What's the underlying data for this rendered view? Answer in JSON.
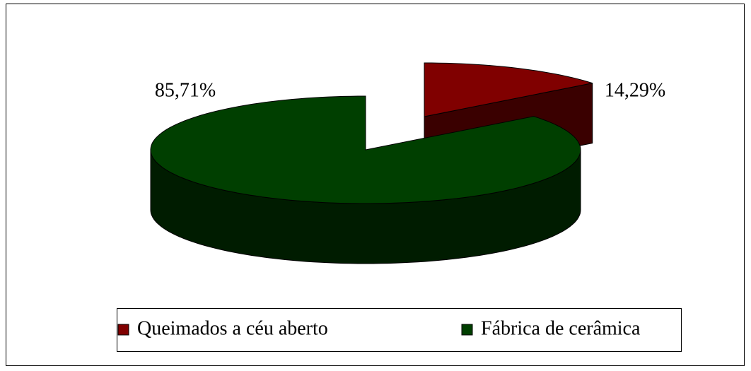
{
  "chart_data": {
    "type": "pie3d",
    "categories": [
      "Queimados a céu aberto",
      "Fábrica de cerâmica"
    ],
    "values": [
      14.29,
      85.71
    ],
    "value_labels": [
      "14,29%",
      "85,71%"
    ],
    "colors": [
      "#800000",
      "#003f00"
    ],
    "legend": "bottom"
  }
}
